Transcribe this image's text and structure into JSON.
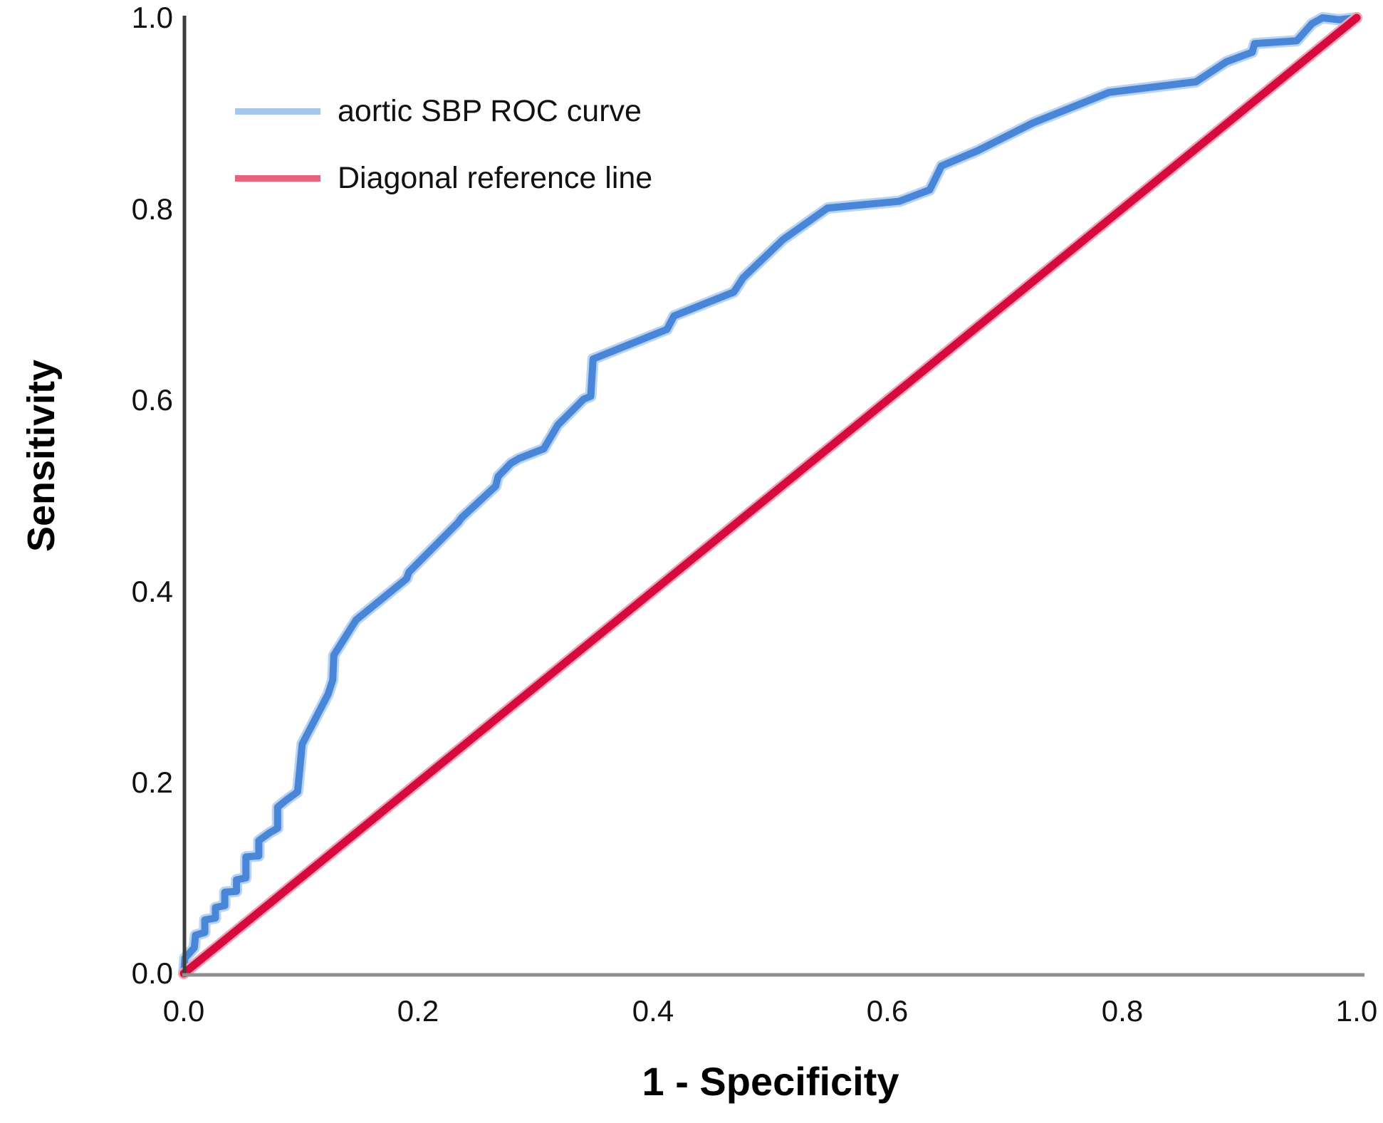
{
  "axes": {
    "x_title": "1 - Specificity",
    "y_title": "Sensitivity",
    "x_tick_labels": [
      "0.0",
      "0.2",
      "0.4",
      "0.6",
      "0.8",
      "1.0"
    ],
    "y_tick_labels": [
      "1.0",
      "0.8",
      "0.6",
      "0.4",
      "0.2",
      "0.0"
    ]
  },
  "legend": {
    "entries": [
      {
        "label": "aortic SBP ROC curve",
        "swatch_color": "#a6c6ef"
      },
      {
        "label": "Diagonal reference line",
        "swatch_color": "#e5637e"
      }
    ]
  },
  "chart_data": {
    "type": "line",
    "title": "",
    "xlabel": "1 - Specificity",
    "ylabel": "Sensitivity",
    "xlim": [
      0,
      1
    ],
    "ylim": [
      0,
      1
    ],
    "x_ticks": [
      0.0,
      0.2,
      0.4,
      0.6,
      0.8,
      1.0
    ],
    "y_ticks": [
      0.0,
      0.2,
      0.4,
      0.6,
      0.8,
      1.0
    ],
    "grid": false,
    "legend_position": "upper-left-inside",
    "series": [
      {
        "name": "aortic SBP ROC curve",
        "color": "#4a86d8",
        "halo_color": "#b9d3f2",
        "points": [
          [
            0.0,
            0.0
          ],
          [
            0.001,
            0.016
          ],
          [
            0.009,
            0.027
          ],
          [
            0.01,
            0.04
          ],
          [
            0.018,
            0.043
          ],
          [
            0.018,
            0.056
          ],
          [
            0.027,
            0.058
          ],
          [
            0.027,
            0.069
          ],
          [
            0.035,
            0.071
          ],
          [
            0.035,
            0.085
          ],
          [
            0.045,
            0.086
          ],
          [
            0.045,
            0.098
          ],
          [
            0.053,
            0.1
          ],
          [
            0.053,
            0.122
          ],
          [
            0.064,
            0.123
          ],
          [
            0.064,
            0.139
          ],
          [
            0.073,
            0.147
          ],
          [
            0.08,
            0.152
          ],
          [
            0.08,
            0.174
          ],
          [
            0.088,
            0.182
          ],
          [
            0.097,
            0.19
          ],
          [
            0.099,
            0.215
          ],
          [
            0.101,
            0.24
          ],
          [
            0.112,
            0.266
          ],
          [
            0.123,
            0.292
          ],
          [
            0.127,
            0.307
          ],
          [
            0.128,
            0.333
          ],
          [
            0.147,
            0.37
          ],
          [
            0.19,
            0.413
          ],
          [
            0.192,
            0.42
          ],
          [
            0.234,
            0.472
          ],
          [
            0.237,
            0.477
          ],
          [
            0.266,
            0.51
          ],
          [
            0.268,
            0.52
          ],
          [
            0.279,
            0.534
          ],
          [
            0.286,
            0.539
          ],
          [
            0.307,
            0.549
          ],
          [
            0.319,
            0.574
          ],
          [
            0.341,
            0.601
          ],
          [
            0.347,
            0.604
          ],
          [
            0.349,
            0.643
          ],
          [
            0.412,
            0.674
          ],
          [
            0.418,
            0.688
          ],
          [
            0.469,
            0.713
          ],
          [
            0.477,
            0.728
          ],
          [
            0.511,
            0.768
          ],
          [
            0.549,
            0.801
          ],
          [
            0.61,
            0.808
          ],
          [
            0.636,
            0.82
          ],
          [
            0.646,
            0.845
          ],
          [
            0.677,
            0.861
          ],
          [
            0.724,
            0.89
          ],
          [
            0.789,
            0.922
          ],
          [
            0.863,
            0.933
          ],
          [
            0.889,
            0.954
          ],
          [
            0.911,
            0.964
          ],
          [
            0.913,
            0.973
          ],
          [
            0.949,
            0.976
          ],
          [
            0.962,
            0.994
          ],
          [
            0.971,
            1.0
          ],
          [
            0.985,
            0.998
          ],
          [
            1.0,
            1.0
          ]
        ]
      },
      {
        "name": "Diagonal reference line",
        "color": "#d60a3c",
        "halo_color": "#f0a3b8",
        "points": [
          [
            0.0,
            0.0
          ],
          [
            1.0,
            1.0
          ]
        ]
      }
    ],
    "axis_colors": {
      "y_axis": "#3d3d3d",
      "x_axis": "#909090"
    }
  }
}
